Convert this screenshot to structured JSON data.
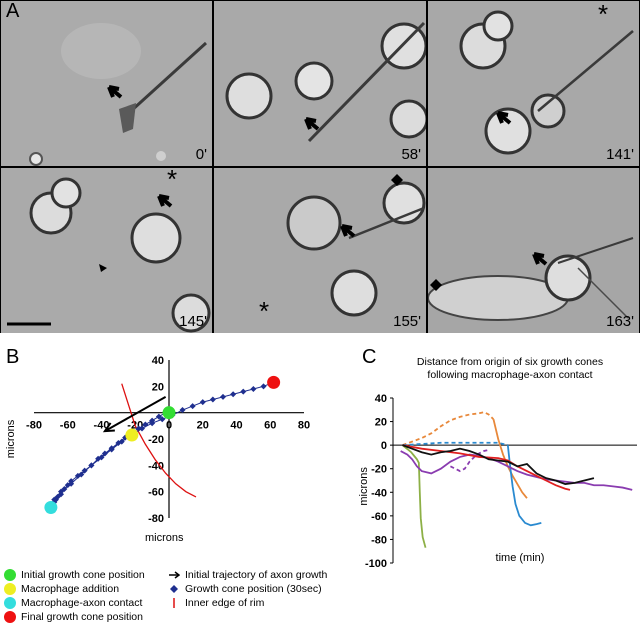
{
  "panel_a": {
    "letter": "A",
    "frames": [
      {
        "time": "0'"
      },
      {
        "time": "58'"
      },
      {
        "time": "141'"
      },
      {
        "time": "145'"
      },
      {
        "time": "155'"
      },
      {
        "time": "163'"
      }
    ]
  },
  "panel_b": {
    "letter": "B",
    "xlabel": "microns",
    "ylabel": "microns",
    "legend": [
      {
        "label": "Initial growth cone position",
        "color": "#33dd33",
        "symbol": "dot"
      },
      {
        "label": "Initial trajectory of axon growth",
        "color": "#000000",
        "symbol": "arrow"
      },
      {
        "label": "Macrophage addition",
        "color": "#eeee22",
        "symbol": "dot"
      },
      {
        "label": "Growth cone position (30sec)",
        "color": "#1f2f8f",
        "symbol": "diamond"
      },
      {
        "label": "Macrophage-axon contact",
        "color": "#33dddd",
        "symbol": "dot"
      },
      {
        "label": "Inner edge of rim",
        "color": "#dd1111",
        "symbol": "line"
      },
      {
        "label": "Final growth cone position",
        "color": "#ee1111",
        "symbol": "dot"
      }
    ]
  },
  "panel_c": {
    "letter": "C",
    "title_line1": "Distance from origin of six growth cones",
    "title_line2": "following macrophage-axon contact",
    "xlabel": "time (min)",
    "ylabel": "microns"
  },
  "chart_data": [
    {
      "type": "scatter",
      "xlabel": "microns",
      "ylabel": "microns",
      "xlim": [
        -80,
        80
      ],
      "ylim": [
        -80,
        40
      ],
      "xticks": [
        -80,
        -60,
        -40,
        -20,
        0,
        20,
        40,
        60,
        80
      ],
      "yticks": [
        -80,
        -60,
        -40,
        -20,
        20,
        40
      ],
      "series": [
        {
          "name": "Growth cone position (30sec)",
          "color": "#1f2f8f",
          "x": [
            -2,
            -6,
            -10,
            -14,
            -18,
            -22,
            -26,
            -30,
            -34,
            -38,
            -42,
            -46,
            -50,
            -54,
            -58,
            -60,
            -62,
            -64,
            -66,
            -67,
            -68,
            -69,
            -70,
            -68,
            -64,
            -58,
            -52,
            -46,
            -40,
            -34,
            -28,
            -22,
            -16,
            -10,
            -4,
            2,
            8,
            14,
            20,
            26,
            32,
            38,
            44,
            50,
            56,
            62
          ],
          "y": [
            0,
            -3,
            -6,
            -9,
            -12,
            -15,
            -19,
            -23,
            -27,
            -31,
            -35,
            -40,
            -44,
            -48,
            -52,
            -55,
            -58,
            -62,
            -64,
            -66,
            -68,
            -70,
            -72,
            -66,
            -60,
            -54,
            -47,
            -40,
            -34,
            -28,
            -22,
            -17,
            -12,
            -8,
            -5,
            -2,
            2,
            5,
            8,
            10,
            12,
            14,
            16,
            18,
            20,
            23
          ]
        }
      ],
      "markers": [
        {
          "label": "Initial growth cone position",
          "x": 0,
          "y": 0,
          "color": "#33dd33"
        },
        {
          "label": "Macrophage addition",
          "x": -22,
          "y": -17,
          "color": "#eeee22"
        },
        {
          "label": "Macrophage-axon contact",
          "x": -70,
          "y": -72,
          "color": "#33dddd"
        },
        {
          "label": "Final growth cone position",
          "x": 62,
          "y": 23,
          "color": "#ee1111"
        }
      ],
      "arrow": {
        "label": "Initial trajectory of axon growth",
        "from": [
          -2,
          12
        ],
        "to": [
          -38,
          -14
        ]
      },
      "rim": {
        "label": "Inner edge of rim",
        "x": [
          -28,
          -24,
          -20,
          -14,
          -8,
          -2,
          4,
          10,
          16
        ],
        "y": [
          22,
          6,
          -10,
          -24,
          -36,
          -46,
          -54,
          -60,
          -64
        ]
      }
    },
    {
      "type": "line",
      "title": "Distance from origin of six growth cones following macrophage-axon contact",
      "xlabel": "time (min)",
      "ylabel": "microns",
      "ylim": [
        -100,
        40
      ],
      "yticks": [
        -100,
        -80,
        -60,
        -40,
        -20,
        0,
        20,
        40
      ],
      "series": [
        {
          "color": "#8db046",
          "dash": false,
          "t": [
            0,
            3,
            6,
            9,
            12,
            15,
            17,
            18,
            19,
            21,
            24
          ],
          "values": [
            0,
            -2,
            -4,
            -6,
            -9,
            -12,
            -15,
            -40,
            -62,
            -78,
            -87
          ]
        },
        {
          "color": "#e8883a",
          "dash": true,
          "t": [
            0,
            10,
            20,
            30,
            40,
            50,
            60,
            70,
            80,
            85,
            90,
            95
          ],
          "values": [
            0,
            3,
            6,
            10,
            16,
            21,
            24,
            26,
            27,
            28,
            26,
            22
          ]
        },
        {
          "color": "#e8883a",
          "dash": false,
          "t": [
            95,
            100,
            105,
            110,
            115,
            120,
            125,
            130
          ],
          "values": [
            22,
            5,
            -8,
            -18,
            -26,
            -33,
            -40,
            -45
          ]
        },
        {
          "color": "#2a8ad0",
          "dash": true,
          "t": [
            0,
            20,
            40,
            60,
            80,
            95,
            100,
            110
          ],
          "values": [
            0,
            1,
            2,
            2,
            2,
            2,
            2,
            0
          ]
        },
        {
          "color": "#2a8ad0",
          "dash": false,
          "t": [
            110,
            112,
            115,
            118,
            122,
            128,
            134,
            140,
            145
          ],
          "values": [
            0,
            -15,
            -35,
            -50,
            -60,
            -66,
            -68,
            -67,
            -66
          ]
        },
        {
          "color": "#8a3cb0",
          "dash": true,
          "t": [
            50,
            55,
            60,
            65,
            70,
            75,
            80,
            85,
            90
          ],
          "values": [
            -18,
            -20,
            -22,
            -20,
            -14,
            -10,
            -7,
            -5,
            -4
          ]
        },
        {
          "color": "#8a3cb0",
          "dash": false,
          "t": [
            -2,
            5,
            10,
            15,
            20,
            30,
            40,
            50,
            60,
            70,
            80,
            90,
            100,
            110,
            120,
            130,
            140,
            150,
            160,
            170,
            180,
            190,
            200,
            210,
            220,
            230,
            240
          ],
          "values": [
            -5,
            -8,
            -12,
            -18,
            -22,
            -24,
            -20,
            -14,
            -10,
            -8,
            -9,
            -11,
            -14,
            -18,
            -22,
            -25,
            -27,
            -29,
            -30,
            -31,
            -32,
            -32,
            -34,
            -34,
            -35,
            -36,
            -38
          ]
        },
        {
          "color": "#e02020",
          "dash": false,
          "t": [
            0,
            20,
            40,
            60,
            80,
            100,
            110,
            120,
            130,
            140,
            150,
            160,
            170,
            175
          ],
          "values": [
            0,
            -3,
            -5,
            -7,
            -10,
            -11,
            -13,
            -18,
            -22,
            -26,
            -30,
            -34,
            -37,
            -38
          ]
        },
        {
          "color": "#111111",
          "dash": false,
          "t": [
            0,
            10,
            20,
            30,
            40,
            50,
            60,
            70,
            80,
            90,
            100,
            110,
            120,
            130,
            140,
            150,
            160,
            170,
            180,
            190,
            200
          ],
          "values": [
            0,
            -3,
            -6,
            -8,
            -6,
            -5,
            -3,
            -5,
            -8,
            -12,
            -13,
            -14,
            -18,
            -16,
            -24,
            -28,
            -30,
            -33,
            -32,
            -30,
            -28
          ]
        }
      ]
    }
  ]
}
